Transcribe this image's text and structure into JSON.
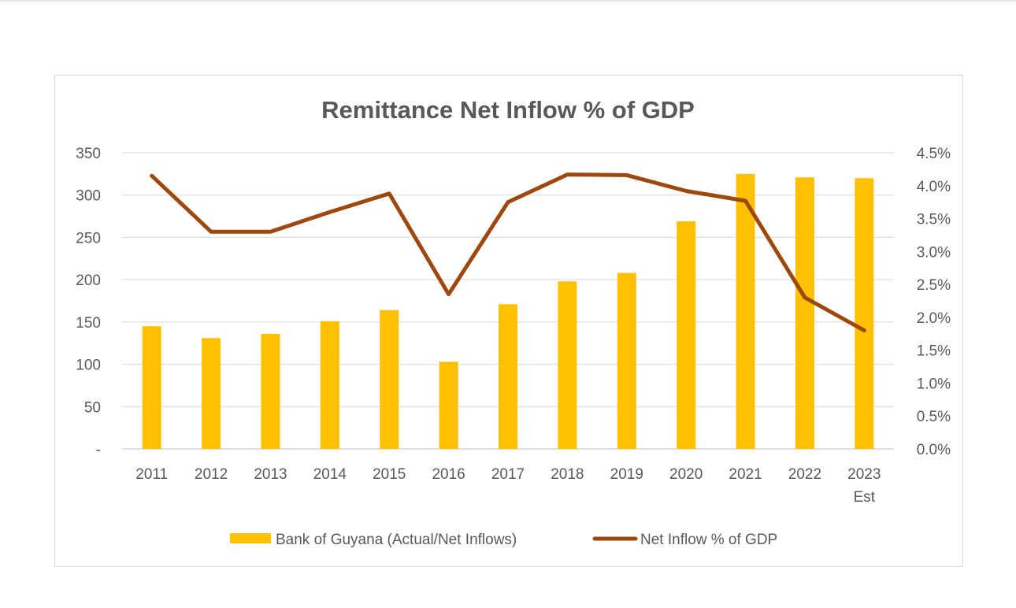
{
  "chart_data": {
    "type": "bar",
    "title": "Remittance Net Inflow % of GDP",
    "categories": [
      "2011",
      "2012",
      "2013",
      "2014",
      "2015",
      "2016",
      "2017",
      "2018",
      "2019",
      "2020",
      "2021",
      "2022",
      "2023"
    ],
    "category_sublabels": [
      "",
      "",
      "",
      "",
      "",
      "",
      "",
      "",
      "",
      "",
      "",
      "",
      "Est"
    ],
    "series": [
      {
        "name": "Bank of Guyana (Actual/Net Inflows)",
        "type": "bar",
        "axis": "left",
        "color": "#FFC000",
        "values": [
          145,
          131,
          136,
          151,
          164,
          103,
          171,
          198,
          208,
          269,
          325,
          321,
          320
        ]
      },
      {
        "name": "Net Inflow % of GDP",
        "type": "line",
        "axis": "right",
        "color": "#9E480E",
        "values": [
          4.15,
          3.3,
          3.3,
          3.6,
          3.88,
          2.35,
          3.75,
          4.17,
          4.16,
          3.92,
          3.77,
          2.3,
          1.8
        ]
      }
    ],
    "y_left": {
      "ylim": [
        0,
        350
      ],
      "ticks": [
        0,
        50,
        100,
        150,
        200,
        250,
        300,
        350
      ],
      "tick_labels": [
        "-",
        "50",
        "100",
        "150",
        "200",
        "250",
        "300",
        "350"
      ]
    },
    "y_right": {
      "ylim": [
        0,
        4.5
      ],
      "ticks": [
        0,
        0.5,
        1,
        1.5,
        2,
        2.5,
        3,
        3.5,
        4,
        4.5
      ],
      "tick_labels": [
        "0.0%",
        "0.5%",
        "1.0%",
        "1.5%",
        "2.0%",
        "2.5%",
        "3.0%",
        "3.5%",
        "4.0%",
        "4.5%"
      ]
    },
    "grid": true,
    "legend": "bottom"
  }
}
